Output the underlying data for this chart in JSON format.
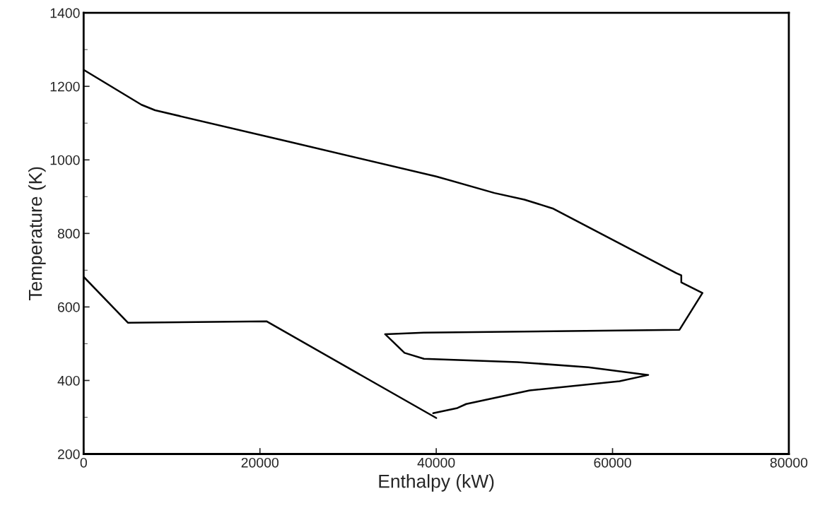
{
  "chart_data": {
    "type": "line",
    "xlabel": "Enthalpy (kW)",
    "ylabel": "Temperature (K)",
    "series": [
      {
        "color": "#000000",
        "x": [
          0,
          6560,
          8100,
          23200,
          40000,
          46600,
          50000,
          53200,
          67250,
          67800,
          67800,
          70200,
          67600,
          38600,
          34200,
          36400,
          38600,
          49200,
          57250,
          64050,
          60800,
          50600,
          43400,
          42400,
          39650
        ],
        "values": [
          1245,
          1150,
          1135,
          1050,
          955,
          910,
          892,
          868,
          692,
          686,
          667,
          638,
          538,
          530,
          526,
          475,
          459,
          450,
          436,
          415,
          398,
          373,
          336,
          325,
          311
        ]
      },
      {
        "color": "#000000",
        "x": [
          0,
          5040,
          20740,
          40000
        ],
        "values": [
          682,
          557,
          561,
          298
        ]
      }
    ],
    "xlim": [
      0,
      80000
    ],
    "ylim": [
      200,
      1400
    ],
    "xticks": [
      0,
      20000,
      40000,
      60000,
      80000
    ],
    "yticks": [
      200,
      400,
      600,
      800,
      1000,
      1200,
      1400
    ],
    "grid": false,
    "marker": "none",
    "line_style": "solid"
  }
}
